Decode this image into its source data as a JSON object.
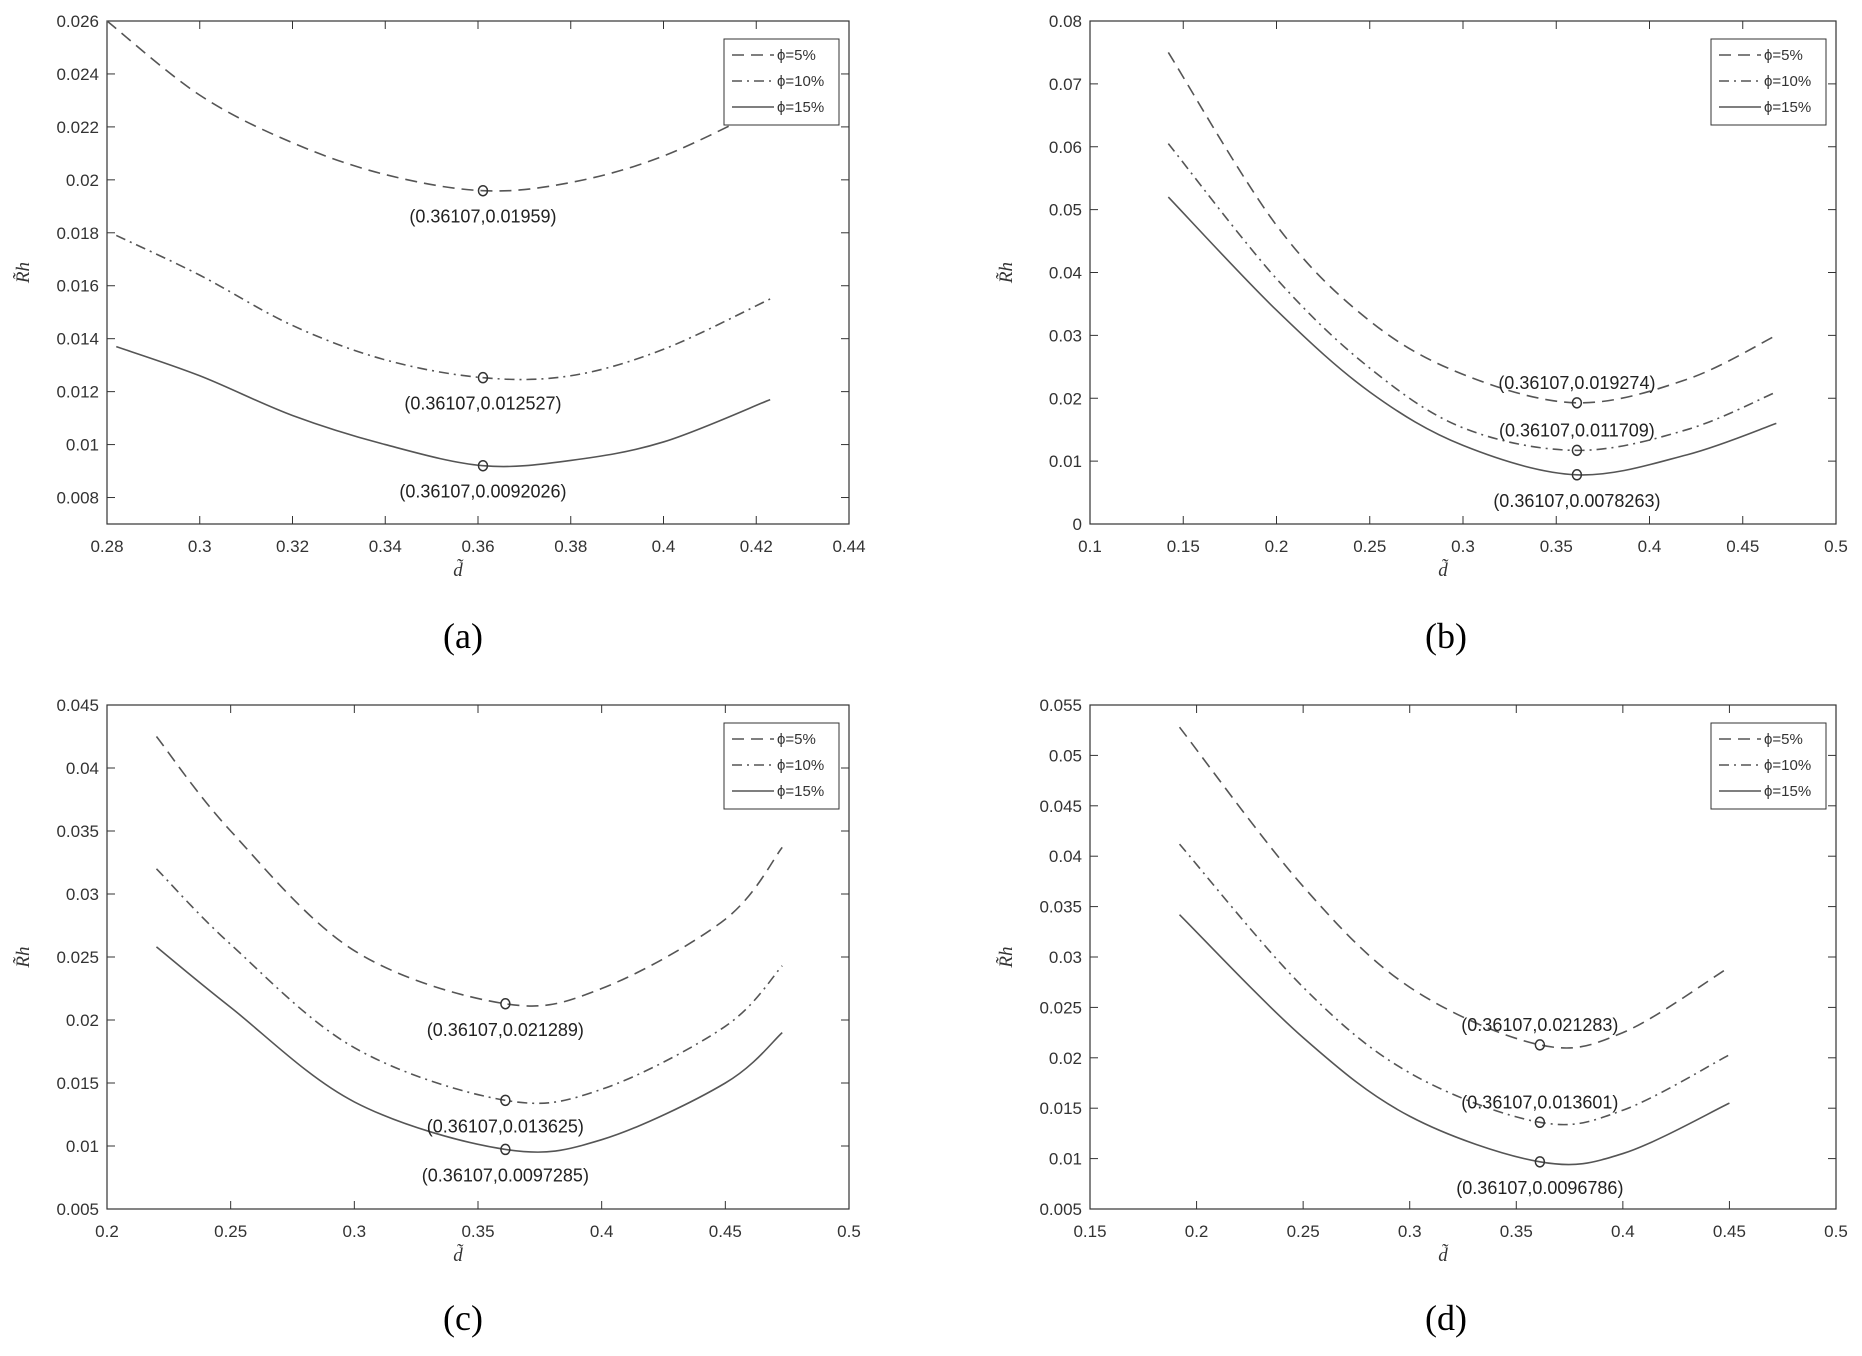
{
  "legend": [
    "ϕ=5%",
    "ϕ=10%",
    "ϕ=15%"
  ],
  "line_styles": [
    "dashed",
    "dash-dot",
    "solid"
  ],
  "line_color": "#555555",
  "chart_data": [
    {
      "type": "line",
      "caption_letter": "a",
      "caption": "(a)",
      "xlabel": "d̃",
      "ylabel": "R̃h",
      "xlim": [
        0.28,
        0.44
      ],
      "ylim": [
        0.007,
        0.026
      ],
      "xticks": [
        "0.28",
        "0.3",
        "0.32",
        "0.34",
        "0.36",
        "0.38",
        "0.4",
        "0.42",
        "0.44"
      ],
      "yticks": [
        "0.008",
        "0.01",
        "0.012",
        "0.014",
        "0.016",
        "0.018",
        "0.02",
        "0.022",
        "0.024",
        "0.026"
      ],
      "legend_position": "top-right",
      "series": [
        {
          "name": "ϕ=5%",
          "x": [
            0.28,
            0.3,
            0.32,
            0.34,
            0.36107,
            0.38,
            0.4,
            0.423
          ],
          "y": [
            0.026,
            0.0232,
            0.0214,
            0.0202,
            0.01959,
            0.0199,
            0.0209,
            0.0228
          ]
        },
        {
          "name": "ϕ=10%",
          "x": [
            0.282,
            0.3,
            0.32,
            0.34,
            0.36107,
            0.38,
            0.4,
            0.423
          ],
          "y": [
            0.0179,
            0.0164,
            0.0145,
            0.0132,
            0.012527,
            0.0126,
            0.0136,
            0.0155
          ]
        },
        {
          "name": "ϕ=15%",
          "x": [
            0.282,
            0.3,
            0.32,
            0.34,
            0.36107,
            0.38,
            0.4,
            0.423
          ],
          "y": [
            0.0137,
            0.0126,
            0.0111,
            0.01,
            0.0092026,
            0.0094,
            0.0101,
            0.0117
          ]
        }
      ],
      "annotations": [
        {
          "x": 0.36107,
          "y": 0.01959,
          "text": "(0.36107,0.01959)",
          "side": "below"
        },
        {
          "x": 0.36107,
          "y": 0.012527,
          "text": "(0.36107,0.012527)",
          "side": "below"
        },
        {
          "x": 0.36107,
          "y": 0.0092026,
          "text": "(0.36107,0.0092026)",
          "side": "below"
        }
      ]
    },
    {
      "type": "line",
      "caption_letter": "b",
      "caption": "(b)",
      "xlabel": "d̃",
      "ylabel": "R̃h",
      "xlim": [
        0.1,
        0.5
      ],
      "ylim": [
        0,
        0.08
      ],
      "xticks": [
        "0.1",
        "0.15",
        "0.2",
        "0.25",
        "0.3",
        "0.35",
        "0.4",
        "0.45",
        "0.5"
      ],
      "yticks": [
        "0",
        "0.01",
        "0.02",
        "0.03",
        "0.04",
        "0.05",
        "0.06",
        "0.07",
        "0.08"
      ],
      "legend_position": "top-right",
      "series": [
        {
          "name": "ϕ=5%",
          "x": [
            0.142,
            0.2,
            0.25,
            0.3,
            0.36107,
            0.42,
            0.468
          ],
          "y": [
            0.075,
            0.0475,
            0.0323,
            0.0238,
            0.019274,
            0.023,
            0.03
          ]
        },
        {
          "name": "ϕ=10%",
          "x": [
            0.142,
            0.2,
            0.25,
            0.3,
            0.36107,
            0.42,
            0.468
          ],
          "y": [
            0.0605,
            0.039,
            0.0248,
            0.0153,
            0.011709,
            0.015,
            0.021
          ]
        },
        {
          "name": "ϕ=15%",
          "x": [
            0.142,
            0.2,
            0.25,
            0.3,
            0.36107,
            0.42,
            0.468
          ],
          "y": [
            0.052,
            0.034,
            0.021,
            0.0125,
            0.0078263,
            0.011,
            0.016
          ]
        }
      ],
      "annotations": [
        {
          "x": 0.36107,
          "y": 0.019274,
          "text": "(0.36107,0.019274)",
          "side": "above"
        },
        {
          "x": 0.36107,
          "y": 0.011709,
          "text": "(0.36107,0.011709)",
          "side": "above"
        },
        {
          "x": 0.36107,
          "y": 0.0078263,
          "text": "(0.36107,0.0078263)",
          "side": "below"
        }
      ]
    },
    {
      "type": "line",
      "caption_letter": "c",
      "caption": "(c)",
      "xlabel": "d̃",
      "ylabel": "R̃h",
      "xlim": [
        0.2,
        0.5
      ],
      "ylim": [
        0.005,
        0.045
      ],
      "xticks": [
        "0.2",
        "0.25",
        "0.3",
        "0.35",
        "0.4",
        "0.45",
        "0.5"
      ],
      "yticks": [
        "0.005",
        "0.01",
        "0.015",
        "0.02",
        "0.025",
        "0.03",
        "0.035",
        "0.04",
        "0.045"
      ],
      "legend_position": "top-right",
      "series": [
        {
          "name": "ϕ=5%",
          "x": [
            0.22,
            0.25,
            0.3,
            0.36107,
            0.4,
            0.45,
            0.473
          ],
          "y": [
            0.0425,
            0.035,
            0.0255,
            0.021289,
            0.0225,
            0.028,
            0.0337
          ]
        },
        {
          "name": "ϕ=10%",
          "x": [
            0.22,
            0.25,
            0.3,
            0.36107,
            0.4,
            0.45,
            0.473
          ],
          "y": [
            0.032,
            0.026,
            0.0178,
            0.013625,
            0.0145,
            0.0195,
            0.0243
          ]
        },
        {
          "name": "ϕ=15%",
          "x": [
            0.22,
            0.25,
            0.3,
            0.36107,
            0.4,
            0.45,
            0.473
          ],
          "y": [
            0.0258,
            0.021,
            0.0135,
            0.0097285,
            0.0105,
            0.015,
            0.019
          ]
        }
      ],
      "annotations": [
        {
          "x": 0.36107,
          "y": 0.021289,
          "text": "(0.36107,0.021289)",
          "side": "below"
        },
        {
          "x": 0.36107,
          "y": 0.013625,
          "text": "(0.36107,0.013625)",
          "side": "below"
        },
        {
          "x": 0.36107,
          "y": 0.0097285,
          "text": "(0.36107,0.0097285)",
          "side": "below"
        }
      ]
    },
    {
      "type": "line",
      "caption_letter": "d",
      "caption": "(d)",
      "xlabel": "d̃",
      "ylabel": "R̃h",
      "xlim": [
        0.15,
        0.5
      ],
      "ylim": [
        0.005,
        0.055
      ],
      "xticks": [
        "0.15",
        "0.2",
        "0.25",
        "0.3",
        "0.35",
        "0.4",
        "0.45",
        "0.5"
      ],
      "yticks": [
        "0.005",
        "0.01",
        "0.015",
        "0.02",
        "0.025",
        "0.03",
        "0.035",
        "0.04",
        "0.045",
        "0.05",
        "0.055"
      ],
      "legend_position": "top-right",
      "series": [
        {
          "name": "ϕ=5%",
          "x": [
            0.192,
            0.25,
            0.3,
            0.36107,
            0.4,
            0.45
          ],
          "y": [
            0.0528,
            0.037,
            0.027,
            0.021283,
            0.0225,
            0.029
          ]
        },
        {
          "name": "ϕ=10%",
          "x": [
            0.192,
            0.25,
            0.3,
            0.36107,
            0.4,
            0.45
          ],
          "y": [
            0.0412,
            0.027,
            0.0185,
            0.013601,
            0.0148,
            0.0203
          ]
        },
        {
          "name": "ϕ=15%",
          "x": [
            0.192,
            0.25,
            0.3,
            0.36107,
            0.4,
            0.45
          ],
          "y": [
            0.0342,
            0.022,
            0.0142,
            0.0096786,
            0.0105,
            0.0155
          ]
        }
      ],
      "annotations": [
        {
          "x": 0.36107,
          "y": 0.021283,
          "text": "(0.36107,0.021283)",
          "side": "above"
        },
        {
          "x": 0.36107,
          "y": 0.013601,
          "text": "(0.36107,0.013601)",
          "side": "above"
        },
        {
          "x": 0.36107,
          "y": 0.0096786,
          "text": "(0.36107,0.0096786)",
          "side": "below"
        }
      ]
    }
  ]
}
